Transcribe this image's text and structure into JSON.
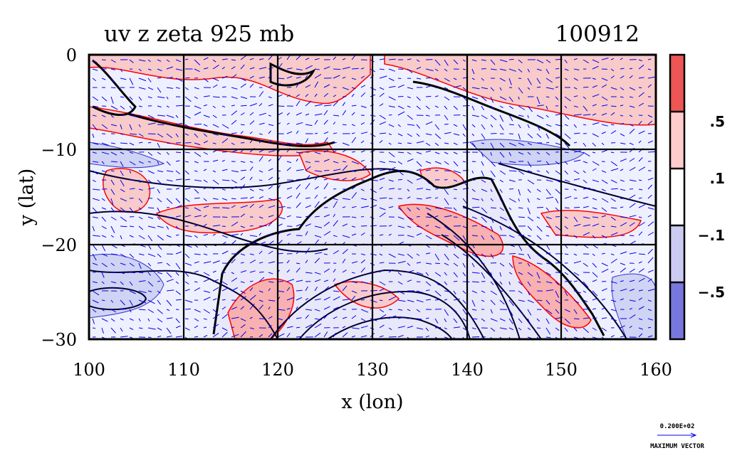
{
  "chart_data": {
    "type": "heatmap",
    "title": "uv z zeta 925 mb",
    "date_label": "100912",
    "xlabel": "x (lon)",
    "ylabel": "y (lat)",
    "xlim": [
      100,
      160
    ],
    "ylim": [
      -30,
      0
    ],
    "x_ticks": [
      100,
      110,
      120,
      130,
      140,
      150,
      160
    ],
    "x_tick_labels": [
      "100",
      "110",
      "120",
      "130",
      "140",
      "150",
      "160"
    ],
    "y_ticks": [
      0,
      -10,
      -20,
      -30
    ],
    "y_tick_labels": [
      "0",
      "−10",
      "−20",
      "−30"
    ],
    "grid": true,
    "colorbar": {
      "levels": [
        ".5",
        ".1",
        "−.1",
        "−.5"
      ],
      "colors": [
        "#ee5555",
        "#ffcccc",
        "#ffffff",
        "#ccccf2",
        "#7777dd"
      ]
    },
    "vector_key": {
      "value_label": "0.200E+02",
      "caption": "MAXIMUM VECTOR"
    }
  },
  "colors": {
    "positive": "#f8caca",
    "positive_contour": "#ff0000",
    "negative": "#cfd3f4",
    "vector": "#0000ee",
    "geopotential": "#000033"
  }
}
